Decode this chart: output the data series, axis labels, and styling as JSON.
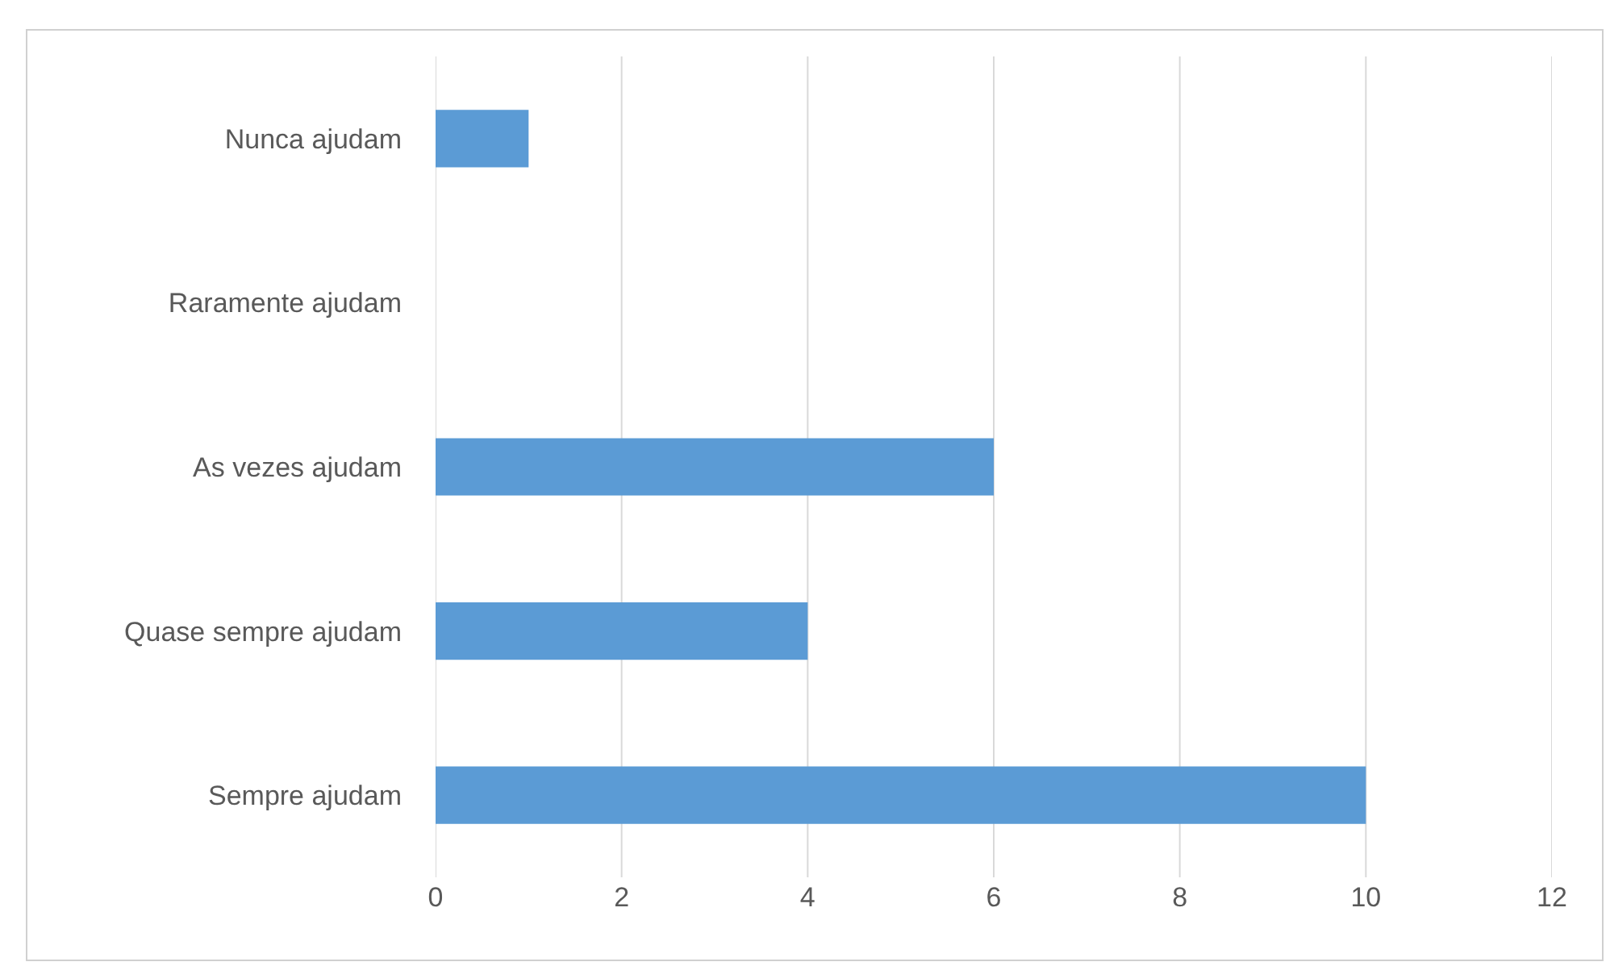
{
  "chart_data": {
    "type": "bar",
    "orientation": "horizontal",
    "categories": [
      "Nunca ajudam",
      "Raramente ajudam",
      "As vezes ajudam",
      "Quase sempre ajudam",
      "Sempre ajudam"
    ],
    "values": [
      1,
      0,
      6,
      4,
      10
    ],
    "color": "#5b9bd5",
    "xlim": [
      0,
      12
    ],
    "xticks": [
      0,
      2,
      4,
      6,
      8,
      10,
      12
    ],
    "grid": "x"
  }
}
